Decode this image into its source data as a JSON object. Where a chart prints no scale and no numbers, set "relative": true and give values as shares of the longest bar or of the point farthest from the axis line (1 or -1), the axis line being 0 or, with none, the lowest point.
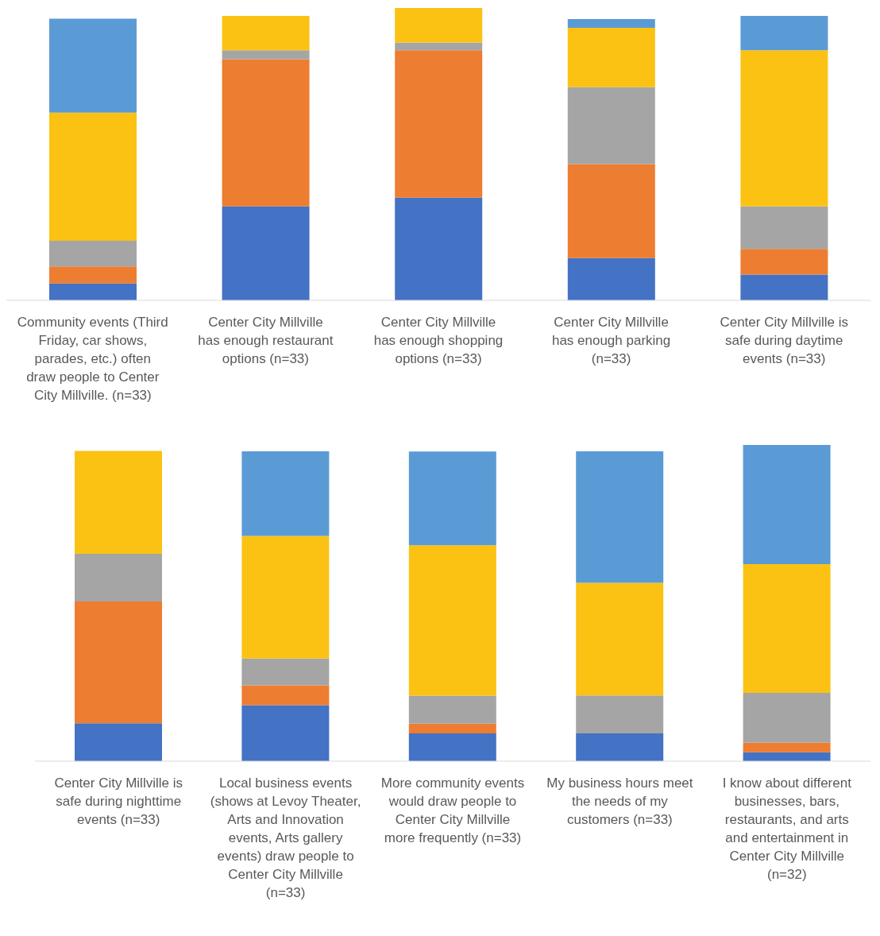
{
  "chart_data": [
    {
      "type": "bar",
      "stacked": true,
      "relative": true,
      "categories": [
        "Community events (Third Friday, car shows, parades, etc.) often draw people to Center City Millville. (n=33)",
        "Center City Millville has enough restaurant options (n=33)",
        "Center City Millville has enough shopping options (n=33)",
        "Center City Millville has enough parking (n=33)",
        "Center City Millville is safe during daytime events (n=33)"
      ],
      "series": [
        {
          "color": "#4472c4",
          "values": [
            0.058,
            0.321,
            0.351,
            0.145,
            0.088
          ]
        },
        {
          "color": "#ed7d31",
          "values": [
            0.058,
            0.504,
            0.504,
            0.321,
            0.088
          ]
        },
        {
          "color": "#a5a5a5",
          "values": [
            0.088,
            0.03,
            0.027,
            0.263,
            0.145
          ]
        },
        {
          "color": "#fbc213",
          "values": [
            0.438,
            0.118,
            0.118,
            0.203,
            0.534
          ]
        },
        {
          "color": "#5b9bd5",
          "values": [
            0.321,
            0,
            0,
            0.03,
            0.118
          ]
        }
      ],
      "grid": false,
      "legend": false
    },
    {
      "type": "bar",
      "stacked": true,
      "relative": true,
      "categories": [
        "Center City Millville is safe during nighttime events (n=33)",
        "Local business events (shows at Levoy Theater, Arts and Innovation events, Arts gallery events) draw people to Center City Millville (n=33)",
        "More community events would draw people to Center City Millville more frequently (n=33)",
        "My business hours meet the needs of my customers (n=33)",
        "I know about different businesses, bars, restaurants, and arts and entertainment in Center City Millville (n=32)"
      ],
      "series": [
        {
          "color": "#4472c4",
          "values": [
            0.12,
            0.177,
            0.088,
            0.088,
            0.028
          ]
        },
        {
          "color": "#ed7d31",
          "values": [
            0.385,
            0.063,
            0.031,
            0,
            0.031
          ]
        },
        {
          "color": "#a5a5a5",
          "values": [
            0.151,
            0.085,
            0.088,
            0.12,
            0.157
          ]
        },
        {
          "color": "#fbc213",
          "values": [
            0.325,
            0.387,
            0.476,
            0.356,
            0.407
          ]
        },
        {
          "color": "#5b9bd5",
          "values": [
            0,
            0.268,
            0.296,
            0.416,
            0.377
          ]
        }
      ],
      "grid": false,
      "legend": false
    }
  ]
}
